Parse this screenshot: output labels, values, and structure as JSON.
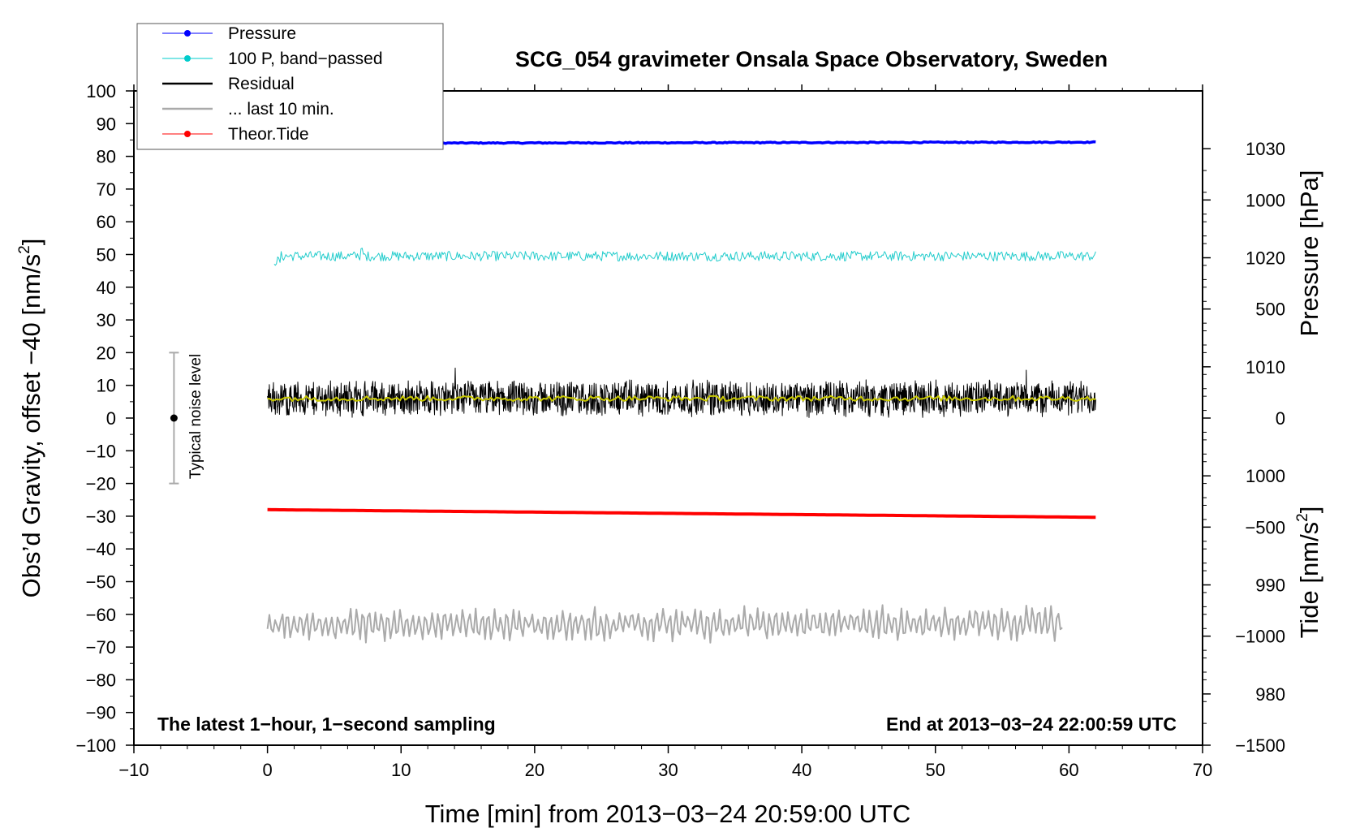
{
  "chart_data": {
    "type": "line",
    "title": "SCG_054 gravimeter Onsala Space Observatory, Sweden",
    "xlabel": "Time [min] from 2013−03−24 20:59:00 UTC",
    "ylabel_left_main": "Obs’d Gravity, offset −40 [nm/s",
    "ylabel_left_sup": "2",
    "ylabel_left_end": "]",
    "ylabel_right_pressure": "Pressure [hPa]",
    "ylabel_right_tide_main": "Tide [nm/s",
    "ylabel_right_tide_sup": "2",
    "ylabel_right_tide_end": "]",
    "footnote_left": "The latest 1−hour, 1−second sampling",
    "footnote_right": "End at 2013−03−24 22:00:59 UTC",
    "noise_label": "Typical noise level",
    "noise_bar": {
      "x": -7,
      "center": 0,
      "half_range": 20
    },
    "xlim": [
      -10,
      70
    ],
    "ylim": [
      -100,
      100
    ],
    "pressure_lim": [
      975.3,
      1035.3
    ],
    "tide_lim": [
      -1500,
      1500
    ],
    "x_ticks": [
      -10,
      0,
      10,
      20,
      30,
      40,
      50,
      60,
      70
    ],
    "x_tick_labels": [
      "−10",
      "0",
      "10",
      "20",
      "30",
      "40",
      "50",
      "60",
      "70"
    ],
    "y_ticks": [
      100,
      90,
      80,
      70,
      60,
      50,
      40,
      30,
      20,
      10,
      0,
      -10,
      -20,
      -30,
      -40,
      -50,
      -60,
      -70,
      -80,
      -90,
      -100
    ],
    "y_tick_labels": [
      "100",
      "90",
      "80",
      "70",
      "60",
      "50",
      "40",
      "30",
      "20",
      "10",
      "0",
      "−10",
      "−20",
      "−30",
      "−40",
      "−50",
      "−60",
      "−70",
      "−80",
      "−90",
      "−100"
    ],
    "pressure_ticks": [
      1030,
      1020,
      1010,
      1000,
      990,
      980
    ],
    "pressure_tick_labels": [
      "1030",
      "1020",
      "1010",
      "1000",
      "990",
      "980"
    ],
    "tide_ticks": [
      1000,
      500,
      0,
      -500,
      -1000,
      -1500
    ],
    "tide_tick_labels": [
      "1000",
      "500",
      "0",
      "−500",
      "−1000",
      "−1500"
    ],
    "legend": [
      {
        "label": "Pressure",
        "color": "#0000ff",
        "marker": true
      },
      {
        "label": "100 P, band−passed",
        "color": "#00cccc",
        "marker": true
      },
      {
        "label": "Residual",
        "color": "#000000",
        "marker": false
      },
      {
        "label": "... last 10 min.",
        "color": "#aaaaaa",
        "marker": false
      },
      {
        "label": "Theor.Tide",
        "color": "#ff0000",
        "marker": true
      }
    ],
    "series": [
      {
        "name": "Pressure",
        "axis": "pressure",
        "color": "#0000ff",
        "x_range": [
          0,
          62
        ],
        "start": 1030.5,
        "end": 1030.6,
        "noise": 0.15
      },
      {
        "name": "100 P, band-passed",
        "axis": "gravity",
        "color": "#22cccc",
        "x_range": [
          0.5,
          62
        ],
        "center": 49.5,
        "amplitude": 1.5,
        "spike_at": 7.0
      },
      {
        "name": "Residual",
        "axis": "gravity",
        "color": "#000000",
        "x_range": [
          0,
          62
        ],
        "center": 6,
        "amplitude": 6
      },
      {
        "name": "Residual smoothed",
        "axis": "gravity",
        "color": "#c8c800",
        "x_range": [
          0,
          62
        ],
        "center": 6,
        "amplitude": 0.8
      },
      {
        "name": "... last 10 min.",
        "axis": "gravity",
        "color": "#aaaaaa",
        "x_range": [
          0,
          59.5
        ],
        "center": -63,
        "amplitude": 5
      },
      {
        "name": "Theor.Tide",
        "axis": "tide",
        "color": "#ff0000",
        "x_range": [
          0,
          62
        ],
        "start": -420,
        "end": -455
      }
    ]
  }
}
